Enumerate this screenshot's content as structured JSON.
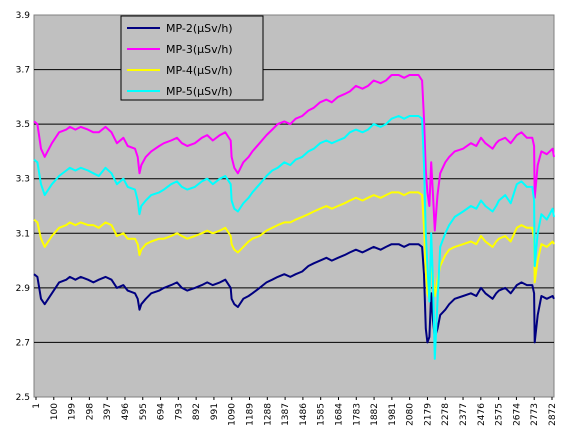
{
  "chart_data": {
    "type": "line",
    "title": "",
    "xlabel": "",
    "ylabel": "",
    "ylim": [
      2.5,
      3.9
    ],
    "yticks": [
      "2.5",
      "2.7",
      "2.9",
      "3.1",
      "3.3",
      "3.5",
      "3.7",
      "3.9"
    ],
    "xlim": [
      1,
      2880
    ],
    "xticks": [
      "1",
      "100",
      "199",
      "298",
      "397",
      "496",
      "595",
      "694",
      "793",
      "892",
      "991",
      "1090",
      "1189",
      "1288",
      "1387",
      "1486",
      "1585",
      "1684",
      "1783",
      "1882",
      "1981",
      "2080",
      "2179",
      "2278",
      "2377",
      "2476",
      "2575",
      "2674",
      "2773",
      "2872"
    ],
    "grid": "horizontal",
    "plot_background": "#c0c0c0",
    "legend": {
      "position": "top-left"
    },
    "series": [
      {
        "name": "MP-2(μSv/h)",
        "color": "#000080",
        "x": [
          1,
          20,
          40,
          60,
          100,
          140,
          180,
          199,
          230,
          260,
          300,
          330,
          360,
          397,
          430,
          460,
          496,
          520,
          560,
          575,
          585,
          595,
          620,
          650,
          694,
          720,
          760,
          793,
          820,
          850,
          892,
          930,
          960,
          991,
          1030,
          1060,
          1090,
          1095,
          1110,
          1130,
          1160,
          1189,
          1210,
          1250,
          1288,
          1320,
          1350,
          1387,
          1420,
          1450,
          1486,
          1520,
          1550,
          1585,
          1620,
          1650,
          1684,
          1720,
          1750,
          1783,
          1820,
          1850,
          1882,
          1920,
          1950,
          1981,
          2020,
          2050,
          2080,
          2100,
          2130,
          2150,
          2160,
          2170,
          2179,
          2190,
          2200,
          2210,
          2220,
          2235,
          2250,
          2278,
          2300,
          2330,
          2377,
          2420,
          2450,
          2476,
          2500,
          2540,
          2560,
          2575,
          2610,
          2640,
          2674,
          2700,
          2730,
          2760,
          2770,
          2773,
          2790,
          2810,
          2840,
          2872,
          2880
        ],
        "y": [
          2.95,
          2.94,
          2.86,
          2.84,
          2.88,
          2.92,
          2.93,
          2.94,
          2.93,
          2.94,
          2.93,
          2.92,
          2.93,
          2.94,
          2.93,
          2.9,
          2.91,
          2.89,
          2.88,
          2.86,
          2.82,
          2.84,
          2.86,
          2.88,
          2.89,
          2.9,
          2.91,
          2.92,
          2.9,
          2.89,
          2.9,
          2.91,
          2.92,
          2.91,
          2.92,
          2.93,
          2.9,
          2.86,
          2.84,
          2.83,
          2.86,
          2.87,
          2.88,
          2.9,
          2.92,
          2.93,
          2.94,
          2.95,
          2.94,
          2.95,
          2.96,
          2.98,
          2.99,
          3.0,
          3.01,
          3.0,
          3.01,
          3.02,
          3.03,
          3.04,
          3.03,
          3.04,
          3.05,
          3.04,
          3.05,
          3.06,
          3.06,
          3.05,
          3.06,
          3.06,
          3.06,
          3.05,
          2.95,
          2.75,
          2.7,
          2.72,
          2.88,
          2.78,
          2.72,
          2.75,
          2.8,
          2.82,
          2.84,
          2.86,
          2.87,
          2.88,
          2.87,
          2.9,
          2.88,
          2.86,
          2.88,
          2.89,
          2.9,
          2.88,
          2.91,
          2.92,
          2.91,
          2.91,
          2.88,
          2.7,
          2.8,
          2.87,
          2.86,
          2.87,
          2.86
        ]
      },
      {
        "name": "MP-3(μSv/h)",
        "color": "#ff00ff",
        "x": [
          1,
          20,
          40,
          60,
          100,
          140,
          180,
          199,
          230,
          260,
          300,
          330,
          360,
          397,
          430,
          460,
          496,
          520,
          560,
          575,
          585,
          595,
          620,
          650,
          694,
          720,
          760,
          793,
          820,
          850,
          892,
          930,
          960,
          991,
          1030,
          1060,
          1090,
          1095,
          1110,
          1130,
          1160,
          1189,
          1210,
          1250,
          1288,
          1320,
          1350,
          1387,
          1420,
          1450,
          1486,
          1520,
          1550,
          1585,
          1620,
          1650,
          1684,
          1720,
          1750,
          1783,
          1820,
          1850,
          1882,
          1920,
          1950,
          1981,
          2020,
          2050,
          2080,
          2100,
          2130,
          2150,
          2160,
          2170,
          2179,
          2190,
          2200,
          2210,
          2220,
          2235,
          2250,
          2278,
          2300,
          2330,
          2377,
          2420,
          2450,
          2476,
          2500,
          2540,
          2560,
          2575,
          2610,
          2640,
          2674,
          2700,
          2730,
          2760,
          2770,
          2773,
          2790,
          2810,
          2840,
          2872,
          2880
        ],
        "y": [
          3.51,
          3.5,
          3.41,
          3.38,
          3.43,
          3.47,
          3.48,
          3.49,
          3.48,
          3.49,
          3.48,
          3.47,
          3.47,
          3.49,
          3.47,
          3.43,
          3.45,
          3.42,
          3.41,
          3.38,
          3.32,
          3.35,
          3.38,
          3.4,
          3.42,
          3.43,
          3.44,
          3.45,
          3.43,
          3.42,
          3.43,
          3.45,
          3.46,
          3.44,
          3.46,
          3.47,
          3.44,
          3.38,
          3.34,
          3.32,
          3.36,
          3.38,
          3.4,
          3.43,
          3.46,
          3.48,
          3.5,
          3.51,
          3.5,
          3.52,
          3.53,
          3.55,
          3.56,
          3.58,
          3.59,
          3.58,
          3.6,
          3.61,
          3.62,
          3.64,
          3.63,
          3.64,
          3.66,
          3.65,
          3.66,
          3.68,
          3.68,
          3.67,
          3.68,
          3.68,
          3.68,
          3.66,
          3.52,
          3.33,
          3.25,
          3.2,
          3.36,
          3.24,
          3.11,
          3.24,
          3.32,
          3.36,
          3.38,
          3.4,
          3.41,
          3.43,
          3.42,
          3.45,
          3.43,
          3.41,
          3.43,
          3.44,
          3.45,
          3.43,
          3.46,
          3.47,
          3.45,
          3.45,
          3.42,
          3.23,
          3.35,
          3.4,
          3.39,
          3.41,
          3.38
        ]
      },
      {
        "name": "MP-4(μSv/h)",
        "color": "#ffff00",
        "x": [
          1,
          20,
          40,
          60,
          100,
          140,
          180,
          199,
          230,
          260,
          300,
          330,
          360,
          397,
          430,
          460,
          496,
          520,
          560,
          575,
          585,
          595,
          620,
          650,
          694,
          720,
          760,
          793,
          820,
          850,
          892,
          930,
          960,
          991,
          1030,
          1060,
          1090,
          1095,
          1110,
          1130,
          1160,
          1189,
          1210,
          1250,
          1288,
          1320,
          1350,
          1387,
          1420,
          1450,
          1486,
          1520,
          1550,
          1585,
          1620,
          1650,
          1684,
          1720,
          1750,
          1783,
          1820,
          1850,
          1882,
          1920,
          1950,
          1981,
          2020,
          2050,
          2080,
          2100,
          2130,
          2150,
          2160,
          2170,
          2179,
          2190,
          2200,
          2210,
          2220,
          2235,
          2250,
          2278,
          2300,
          2330,
          2377,
          2420,
          2450,
          2476,
          2500,
          2540,
          2560,
          2575,
          2610,
          2640,
          2674,
          2700,
          2730,
          2760,
          2770,
          2773,
          2790,
          2810,
          2840,
          2872,
          2880
        ],
        "y": [
          3.15,
          3.14,
          3.08,
          3.05,
          3.09,
          3.12,
          3.13,
          3.14,
          3.13,
          3.14,
          3.13,
          3.13,
          3.12,
          3.14,
          3.13,
          3.09,
          3.1,
          3.08,
          3.08,
          3.06,
          3.02,
          3.04,
          3.06,
          3.07,
          3.08,
          3.08,
          3.09,
          3.1,
          3.09,
          3.08,
          3.09,
          3.1,
          3.11,
          3.1,
          3.11,
          3.12,
          3.09,
          3.06,
          3.04,
          3.03,
          3.05,
          3.07,
          3.08,
          3.09,
          3.11,
          3.12,
          3.13,
          3.14,
          3.14,
          3.15,
          3.16,
          3.17,
          3.18,
          3.19,
          3.2,
          3.19,
          3.2,
          3.21,
          3.22,
          3.23,
          3.22,
          3.23,
          3.24,
          3.23,
          3.24,
          3.25,
          3.25,
          3.24,
          3.25,
          3.25,
          3.25,
          3.24,
          3.12,
          2.96,
          2.88,
          2.86,
          3.0,
          2.94,
          2.87,
          2.93,
          2.98,
          3.02,
          3.04,
          3.05,
          3.06,
          3.07,
          3.06,
          3.09,
          3.07,
          3.05,
          3.07,
          3.08,
          3.09,
          3.07,
          3.12,
          3.13,
          3.12,
          3.12,
          3.08,
          2.92,
          3.0,
          3.06,
          3.05,
          3.07,
          3.06
        ]
      },
      {
        "name": "MP-5(μSv/h)",
        "color": "#00ffff",
        "x": [
          1,
          20,
          40,
          60,
          100,
          140,
          180,
          199,
          230,
          260,
          300,
          330,
          360,
          397,
          430,
          460,
          496,
          520,
          560,
          575,
          585,
          595,
          620,
          650,
          694,
          720,
          760,
          793,
          820,
          850,
          892,
          930,
          960,
          991,
          1030,
          1060,
          1090,
          1095,
          1110,
          1130,
          1160,
          1189,
          1210,
          1250,
          1288,
          1320,
          1350,
          1387,
          1420,
          1450,
          1486,
          1520,
          1550,
          1585,
          1620,
          1650,
          1684,
          1720,
          1750,
          1783,
          1820,
          1850,
          1882,
          1920,
          1950,
          1981,
          2020,
          2050,
          2080,
          2100,
          2130,
          2150,
          2160,
          2170,
          2179,
          2190,
          2200,
          2210,
          2220,
          2235,
          2250,
          2278,
          2300,
          2330,
          2377,
          2420,
          2450,
          2476,
          2500,
          2540,
          2560,
          2575,
          2610,
          2640,
          2674,
          2700,
          2730,
          2760,
          2770,
          2773,
          2790,
          2810,
          2840,
          2872,
          2880
        ],
        "y": [
          3.37,
          3.36,
          3.28,
          3.24,
          3.28,
          3.31,
          3.33,
          3.34,
          3.33,
          3.34,
          3.33,
          3.32,
          3.31,
          3.34,
          3.32,
          3.28,
          3.3,
          3.27,
          3.26,
          3.22,
          3.17,
          3.2,
          3.22,
          3.24,
          3.25,
          3.26,
          3.28,
          3.29,
          3.27,
          3.26,
          3.27,
          3.29,
          3.3,
          3.28,
          3.3,
          3.31,
          3.28,
          3.22,
          3.19,
          3.18,
          3.21,
          3.23,
          3.25,
          3.28,
          3.31,
          3.33,
          3.34,
          3.36,
          3.35,
          3.37,
          3.38,
          3.4,
          3.41,
          3.43,
          3.44,
          3.43,
          3.44,
          3.45,
          3.47,
          3.48,
          3.47,
          3.48,
          3.5,
          3.49,
          3.5,
          3.52,
          3.53,
          3.52,
          3.53,
          3.53,
          3.53,
          3.52,
          3.35,
          3.1,
          2.98,
          2.85,
          3.1,
          2.92,
          2.64,
          2.85,
          3.05,
          3.1,
          3.13,
          3.16,
          3.18,
          3.2,
          3.19,
          3.22,
          3.2,
          3.18,
          3.2,
          3.22,
          3.24,
          3.21,
          3.28,
          3.29,
          3.27,
          3.27,
          3.22,
          2.98,
          3.1,
          3.17,
          3.15,
          3.19,
          3.16
        ]
      }
    ]
  }
}
